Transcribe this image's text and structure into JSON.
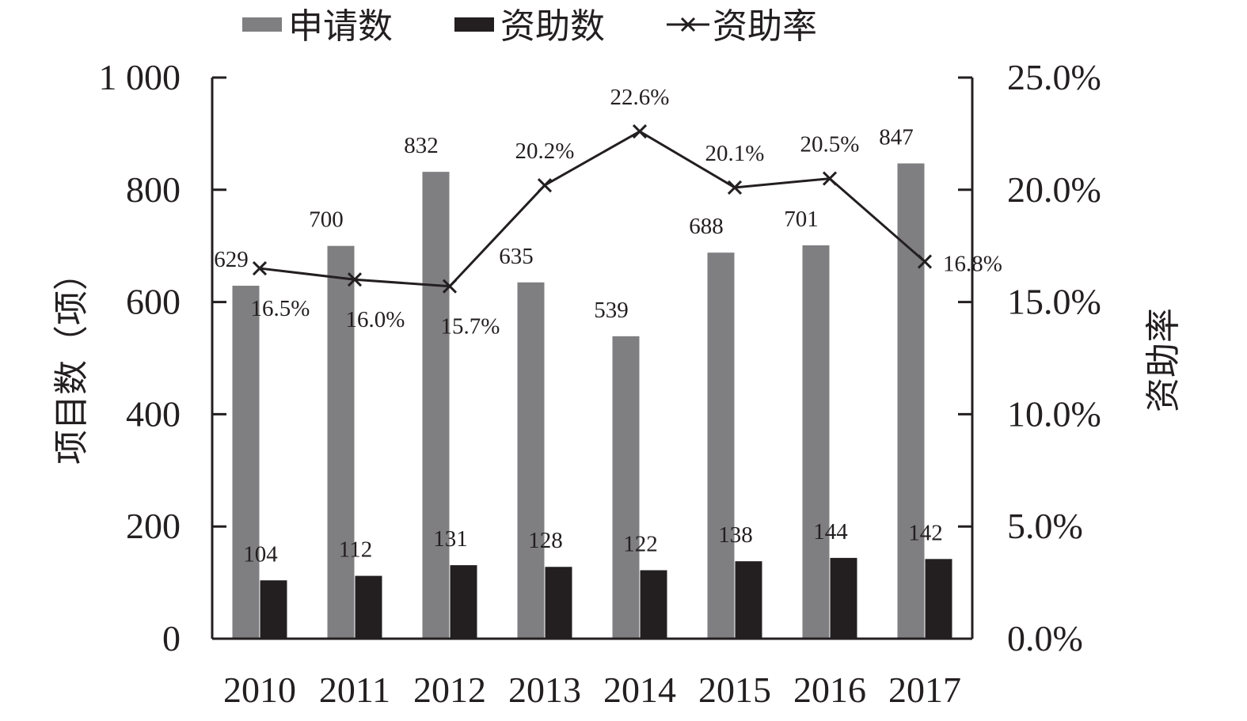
{
  "chart_data": {
    "type": "bar",
    "categories": [
      "2010",
      "2011",
      "2012",
      "2013",
      "2014",
      "2015",
      "2016",
      "2017"
    ],
    "series": [
      {
        "name": "申请数",
        "kind": "bar",
        "axis": "left",
        "color": "#7f7e80",
        "values": [
          629,
          700,
          832,
          635,
          539,
          688,
          701,
          847
        ],
        "labels": [
          "629",
          "700",
          "832",
          "635",
          "539",
          "688",
          "701",
          "847"
        ]
      },
      {
        "name": "资助数",
        "kind": "bar",
        "axis": "left",
        "color": "#231f20",
        "values": [
          104,
          112,
          131,
          128,
          122,
          138,
          144,
          142
        ],
        "labels": [
          "104",
          "112",
          "131",
          "128",
          "122",
          "138",
          "144",
          "142"
        ]
      },
      {
        "name": "资助率",
        "kind": "line",
        "axis": "right",
        "color": "#231f20",
        "marker": "x",
        "values": [
          16.5,
          16.0,
          15.7,
          20.2,
          22.6,
          20.1,
          20.5,
          16.8
        ],
        "labels": [
          "16.5%",
          "16.0%",
          "15.7%",
          "20.2%",
          "22.6%",
          "20.1%",
          "20.5%",
          "16.8%"
        ]
      }
    ],
    "ylabel": "项目数（项）",
    "y2label": "资助率",
    "ylim": [
      0,
      1000
    ],
    "y2lim": [
      0,
      25
    ],
    "yticks": [
      "0",
      "200",
      "400",
      "600",
      "800",
      "1 000"
    ],
    "y2ticks": [
      "0.0%",
      "5.0%",
      "10.0%",
      "15.0%",
      "20.0%",
      "25.0%"
    ],
    "grid": false,
    "legend_position": "top"
  }
}
